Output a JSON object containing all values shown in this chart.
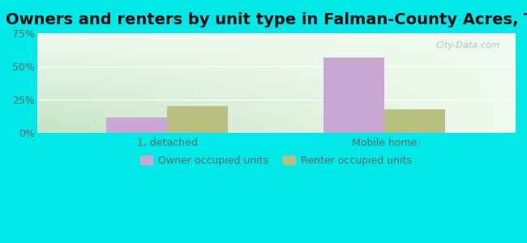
{
  "title": "Owners and renters by unit type in Falman-County Acres, TX",
  "categories": [
    "1, detached",
    "Mobile home"
  ],
  "owner_values": [
    12.0,
    57.0
  ],
  "renter_values": [
    20.0,
    18.0
  ],
  "owner_color": "#c9a8d4",
  "renter_color": "#b8bf80",
  "owner_label": "Owner occupied units",
  "renter_label": "Renter occupied units",
  "ylim": [
    0,
    75
  ],
  "yticks": [
    0,
    25,
    50,
    75
  ],
  "ytick_labels": [
    "0%",
    "25%",
    "50%",
    "75%"
  ],
  "background_color": "#00e8e8",
  "title_fontsize": 14,
  "bar_width": 0.28,
  "figsize": [
    6.5,
    3.0
  ],
  "dpi": 100,
  "watermark": "City-Data.com",
  "gradient_top": "#f0faf0",
  "gradient_bottom": "#d4ecd4",
  "gradient_right": "#ffffff"
}
